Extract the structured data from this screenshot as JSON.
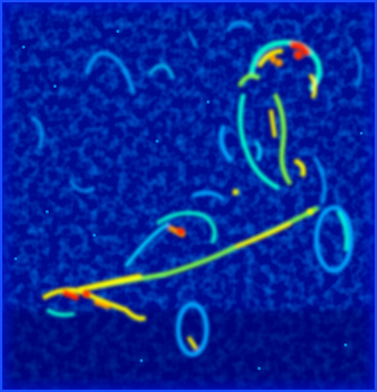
{
  "image": {
    "palette": [
      "#00007a",
      "#0013c8",
      "#0040ff",
      "#00a8ff",
      "#00ffd0",
      "#7dff4a",
      "#ffff00",
      "#ff9900",
      "#ff2a00"
    ],
    "colormap": "jet",
    "subject_icon": "go-kart-rider-edge-map"
  }
}
